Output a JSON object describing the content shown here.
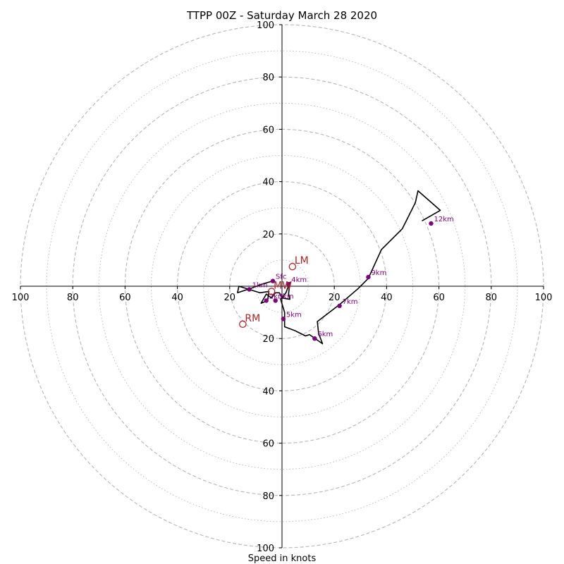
{
  "chart_data": {
    "type": "scatter",
    "title": "TTPP 00Z - Saturday March 28 2020",
    "xlabel": "Speed in knots",
    "ylabel": "",
    "ylim": [
      -100,
      100
    ],
    "xlim": [
      -100,
      100
    ],
    "rings_dashed": [
      20,
      40,
      60,
      80,
      100
    ],
    "rings_dotted": [
      10,
      30,
      50,
      70,
      90
    ],
    "x_ticks": [
      {
        "label": "100",
        "x": -100
      },
      {
        "label": "80",
        "x": -80
      },
      {
        "label": "60",
        "x": -60
      },
      {
        "label": "40",
        "x": -40
      },
      {
        "label": "20",
        "x": -20
      },
      {
        "label": "20",
        "x": 20
      },
      {
        "label": "40",
        "x": 40
      },
      {
        "label": "60",
        "x": 60
      },
      {
        "label": "80",
        "x": 80
      },
      {
        "label": "100",
        "x": 100
      }
    ],
    "y_ticks": [
      {
        "label": "100",
        "y": 100
      },
      {
        "label": "80",
        "y": 80
      },
      {
        "label": "60",
        "y": 60
      },
      {
        "label": "40",
        "y": 40
      },
      {
        "label": "20",
        "y": 20
      },
      {
        "label": "20",
        "y": -20
      },
      {
        "label": "40",
        "y": -40
      },
      {
        "label": "60",
        "y": -60
      },
      {
        "label": "80",
        "y": -80
      },
      {
        "label": "100",
        "y": -100
      }
    ],
    "hodograph_line": [
      [
        -3.5,
        2
      ],
      [
        -7,
        1
      ],
      [
        -11,
        -0.5
      ],
      [
        -17,
        -2.5
      ],
      [
        -16.5,
        0
      ],
      [
        -12.5,
        -1.2
      ],
      [
        -8.5,
        -2.5
      ],
      [
        -5,
        -2
      ],
      [
        -5.5,
        -5.5
      ],
      [
        -8,
        -6.5
      ],
      [
        -6,
        -3
      ],
      [
        -4,
        -4.5
      ],
      [
        -2.5,
        -2.5
      ],
      [
        -1,
        -2.5
      ],
      [
        0,
        -4.5
      ],
      [
        3,
        -5
      ],
      [
        2.5,
        -3
      ],
      [
        3,
        1.5
      ],
      [
        1.5,
        -2.5
      ],
      [
        -0.5,
        -5
      ],
      [
        1,
        -10
      ],
      [
        1,
        -15.5
      ],
      [
        5,
        -17
      ],
      [
        9,
        -19
      ],
      [
        10.5,
        -18.5
      ],
      [
        15.5,
        -22
      ],
      [
        14,
        -18
      ],
      [
        13.5,
        -13.5
      ],
      [
        22,
        -7
      ],
      [
        29,
        -1
      ],
      [
        33,
        3
      ],
      [
        38,
        14
      ],
      [
        46,
        22
      ],
      [
        51,
        32
      ],
      [
        52,
        36.5
      ],
      [
        60.5,
        29
      ],
      [
        53.5,
        25
      ]
    ],
    "height_markers": [
      {
        "label": "Sfc",
        "x": -3.5,
        "y": 2
      },
      {
        "label": "1km",
        "x": -12.5,
        "y": -1.2
      },
      {
        "label": "2km",
        "x": -6,
        "y": -5.5
      },
      {
        "label": "3km",
        "x": -2.5,
        "y": -5.5
      },
      {
        "label": "4km",
        "x": 2.5,
        "y": 0.8
      },
      {
        "label": "5km",
        "x": 0.5,
        "y": -12.5
      },
      {
        "label": "6km",
        "x": 12.5,
        "y": -20
      },
      {
        "label": "7km",
        "x": 22,
        "y": -7.5
      },
      {
        "label": "9km",
        "x": 33,
        "y": 3.5
      },
      {
        "label": "12km",
        "x": 57,
        "y": 24
      }
    ],
    "storm_motion": [
      {
        "label": "LM",
        "x": 4,
        "y": 7.5
      },
      {
        "label": "RM",
        "x": -15,
        "y": -14.5
      },
      {
        "label": "MW",
        "x": -4,
        "y": -2
      }
    ],
    "colors": {
      "line": "#000000",
      "height_markers": "#800080",
      "storm_motion": "#b22222",
      "grid": "#bbbbbb"
    }
  }
}
